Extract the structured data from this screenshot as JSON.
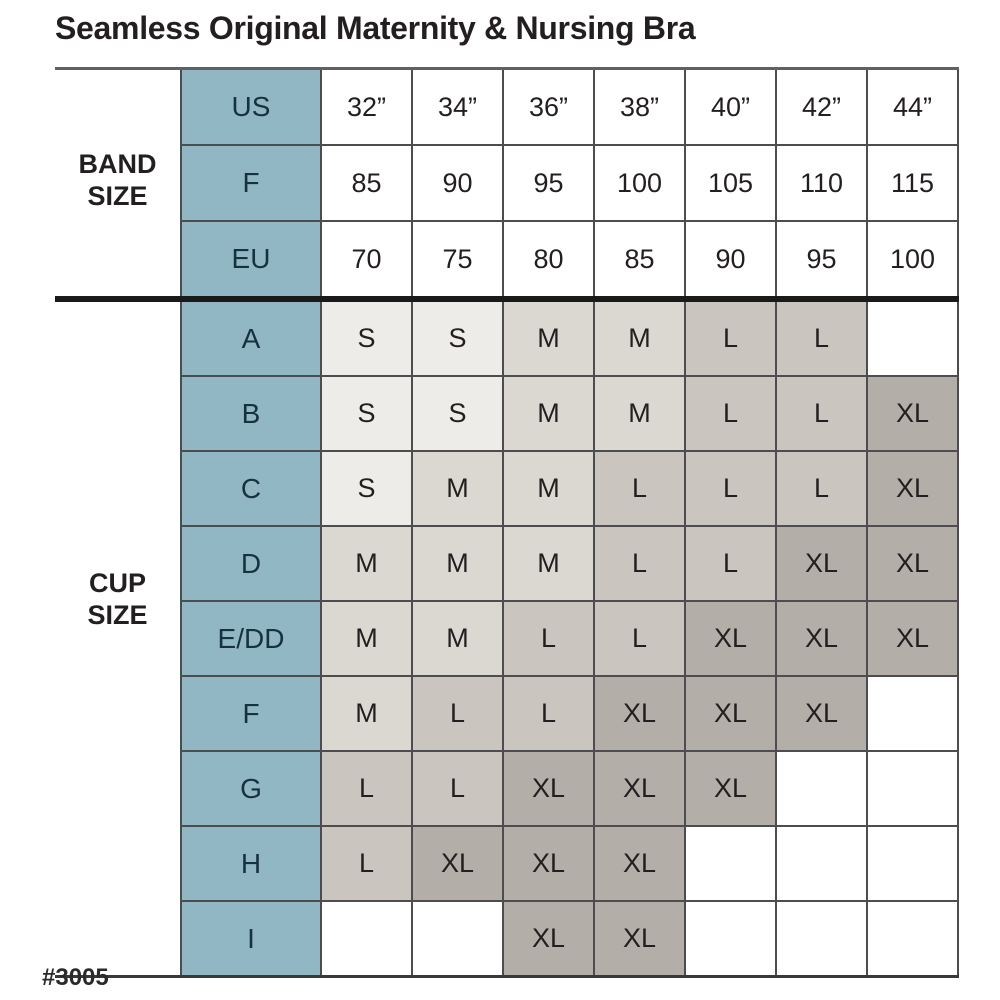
{
  "title": "Seamless Original Maternity & Nursing Bra",
  "footer": {
    "style_number": "#3005"
  },
  "colors": {
    "row_header_bg": "#91b6c4",
    "row_header_text": "#17323f",
    "size_s_bg": "#eeece9",
    "size_m_bg": "#dbd7d1",
    "size_l_bg": "#cac5bf",
    "size_xl_bg": "#b3aea7",
    "grid_line": "#4d4d4f",
    "text": "#231f20",
    "section_divider": "#1a1a1a"
  },
  "chart_data": {
    "type": "table",
    "title": "Seamless Original Maternity & Nursing Bra",
    "legend_note": "cell shading encodes garment size S / M / L / XL",
    "row_groups": [
      {
        "group_label": "BAND SIZE",
        "rows": [
          {
            "label": "US",
            "values": [
              "32”",
              "34”",
              "36”",
              "38”",
              "40”",
              "42”",
              "44”"
            ]
          },
          {
            "label": "F",
            "values": [
              "85",
              "90",
              "95",
              "100",
              "105",
              "110",
              "115"
            ]
          },
          {
            "label": "EU",
            "values": [
              "70",
              "75",
              "80",
              "85",
              "90",
              "95",
              "100"
            ]
          }
        ]
      },
      {
        "group_label": "CUP SIZE",
        "rows": [
          {
            "label": "A",
            "values": [
              "S",
              "S",
              "M",
              "M",
              "L",
              "L",
              ""
            ]
          },
          {
            "label": "B",
            "values": [
              "S",
              "S",
              "M",
              "M",
              "L",
              "L",
              "XL"
            ]
          },
          {
            "label": "C",
            "values": [
              "S",
              "M",
              "M",
              "L",
              "L",
              "L",
              "XL"
            ]
          },
          {
            "label": "D",
            "values": [
              "M",
              "M",
              "M",
              "L",
              "L",
              "XL",
              "XL"
            ]
          },
          {
            "label": "E/DD",
            "values": [
              "M",
              "M",
              "L",
              "L",
              "XL",
              "XL",
              "XL"
            ]
          },
          {
            "label": "F",
            "values": [
              "M",
              "L",
              "L",
              "XL",
              "XL",
              "XL",
              ""
            ]
          },
          {
            "label": "G",
            "values": [
              "L",
              "L",
              "XL",
              "XL",
              "XL",
              "",
              ""
            ]
          },
          {
            "label": "H",
            "values": [
              "L",
              "XL",
              "XL",
              "XL",
              "",
              "",
              ""
            ]
          },
          {
            "label": "I",
            "values": [
              "",
              "",
              "XL",
              "XL",
              "",
              "",
              ""
            ]
          }
        ]
      }
    ]
  }
}
